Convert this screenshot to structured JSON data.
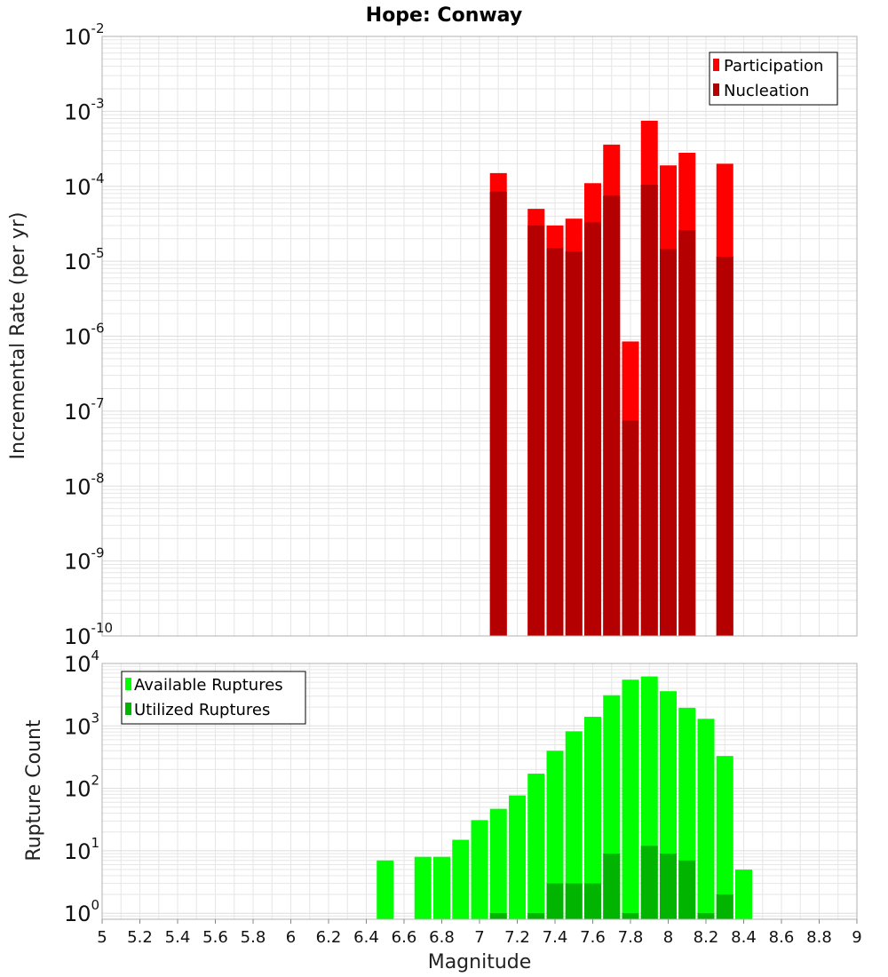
{
  "title": "Hope: Conway",
  "xlabel": "Magnitude",
  "colors": {
    "participation": "#ff0000",
    "nucleation": "#b40000",
    "available": "#00ff00",
    "utilized": "#00b400",
    "grid": "#e6e6e6",
    "frame": "#b0b0b0"
  },
  "chart_data": [
    {
      "type": "bar",
      "name": "rate",
      "ylabel": "Incremental Rate (per yr)",
      "yscale": "log",
      "ylim": [
        1e-10,
        0.01
      ],
      "xlim": [
        5,
        9
      ],
      "x": [
        7.1,
        7.3,
        7.4,
        7.5,
        7.6,
        7.7,
        7.8,
        7.9,
        8.0,
        8.1,
        8.3
      ],
      "series": [
        {
          "name": "Participation",
          "values": [
            0.00015,
            5e-05,
            3e-05,
            3.7e-05,
            0.00011,
            0.00036,
            8.5e-07,
            0.00075,
            0.00019,
            0.00028,
            0.0002
          ]
        },
        {
          "name": "Nucleation",
          "values": [
            8.5e-05,
            3e-05,
            1.5e-05,
            1.35e-05,
            3.3e-05,
            7.5e-05,
            7.5e-08,
            0.000105,
            1.45e-05,
            2.6e-05,
            1.15e-05
          ]
        }
      ],
      "legend": "top-right",
      "grid": true
    },
    {
      "type": "bar",
      "name": "count",
      "ylabel": "Rupture Count",
      "yscale": "log",
      "ylim": [
        0.8,
        10000
      ],
      "xlim": [
        5,
        9
      ],
      "x": [
        6.5,
        6.7,
        6.8,
        6.9,
        7.0,
        7.1,
        7.2,
        7.3,
        7.4,
        7.5,
        7.6,
        7.7,
        7.8,
        7.9,
        8.0,
        8.1,
        8.2,
        8.3,
        8.4
      ],
      "series": [
        {
          "name": "Available Ruptures",
          "values": [
            7,
            8,
            8,
            15,
            31,
            47,
            77,
            172,
            400,
            820,
            1400,
            3100,
            5500,
            6200,
            3600,
            1950,
            1300,
            330,
            5
          ]
        },
        {
          "name": "Utilized Ruptures",
          "values": [
            0,
            0,
            0,
            0,
            0,
            1,
            0,
            1,
            3,
            3,
            3,
            9,
            1,
            12,
            9,
            7,
            1,
            2,
            0
          ]
        }
      ],
      "legend": "top-left",
      "grid": true
    }
  ],
  "xticks": [
    "5",
    "5.2",
    "5.4",
    "5.6",
    "5.8",
    "6",
    "6.2",
    "6.4",
    "6.6",
    "6.8",
    "7",
    "7.2",
    "7.4",
    "7.6",
    "7.8",
    "8",
    "8.2",
    "8.4",
    "8.6",
    "8.8",
    "9"
  ],
  "top_yticks": [
    {
      "base": "10",
      "exp": "-2"
    },
    {
      "base": "10",
      "exp": "-3"
    },
    {
      "base": "10",
      "exp": "-4"
    },
    {
      "base": "10",
      "exp": "-5"
    },
    {
      "base": "10",
      "exp": "-6"
    },
    {
      "base": "10",
      "exp": "-7"
    },
    {
      "base": "10",
      "exp": "-8"
    },
    {
      "base": "10",
      "exp": "-9"
    },
    {
      "base": "10",
      "exp": "-10"
    }
  ],
  "bottom_yticks": [
    {
      "base": "10",
      "exp": "4"
    },
    {
      "base": "10",
      "exp": "3"
    },
    {
      "base": "10",
      "exp": "2"
    },
    {
      "base": "10",
      "exp": "1"
    },
    {
      "base": "10",
      "exp": "0"
    }
  ]
}
